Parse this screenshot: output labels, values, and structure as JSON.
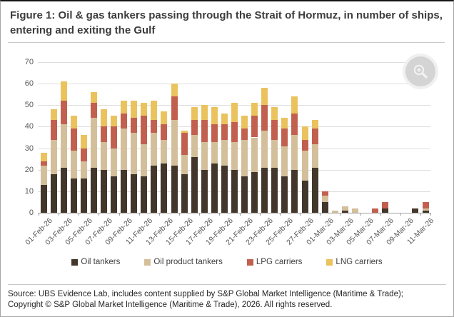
{
  "figure": {
    "title": "Figure 1: Oil & gas tankers passing through the Strait of Hormuz, in number of ships, entering and exiting the Gulf",
    "source": "Source: UBS Evidence Lab, includes content supplied by S&P Global Market Intelligence (Maritime & Trade); Copyright © S&P Global Market Intelligence (Maritime & Trade), 2026. All rights reserved."
  },
  "icons": {
    "toolbar": "zoom-in-magnifier"
  },
  "chart_data": {
    "type": "bar",
    "stacked": true,
    "title": "Oil & gas tankers passing through the Strait of Hormuz",
    "xlabel": "",
    "ylabel": "",
    "ylim": [
      0,
      70
    ],
    "y_ticks": [
      0,
      10,
      20,
      30,
      40,
      50,
      60,
      70
    ],
    "grid": true,
    "legend_position": "bottom",
    "x_tick_every": 2,
    "categories": [
      "01-Feb-26",
      "02-Feb-26",
      "03-Feb-26",
      "04-Feb-26",
      "05-Feb-26",
      "06-Feb-26",
      "07-Feb-26",
      "08-Feb-26",
      "09-Feb-26",
      "10-Feb-26",
      "11-Feb-26",
      "12-Feb-26",
      "13-Feb-26",
      "14-Feb-26",
      "15-Feb-26",
      "16-Feb-26",
      "17-Feb-26",
      "18-Feb-26",
      "19-Feb-26",
      "20-Feb-26",
      "21-Feb-26",
      "22-Feb-26",
      "23-Feb-26",
      "24-Feb-26",
      "25-Feb-26",
      "26-Feb-26",
      "27-Feb-26",
      "28-Feb-26",
      "01-Mar-26",
      "02-Mar-26",
      "03-Mar-26",
      "04-Mar-26",
      "05-Mar-26",
      "06-Mar-26",
      "07-Mar-26",
      "08-Mar-26",
      "09-Mar-26",
      "10-Mar-26",
      "11-Mar-26"
    ],
    "series": [
      {
        "name": "Oil tankers",
        "color": "#42372a",
        "values": [
          13,
          18,
          21,
          16,
          16,
          21,
          20,
          17,
          20,
          18,
          17,
          22,
          23,
          22,
          18,
          26,
          20,
          23,
          22,
          20,
          17,
          19,
          21,
          21,
          17,
          20,
          15,
          21,
          5,
          0,
          1,
          0,
          0,
          0,
          2,
          0,
          0,
          2,
          1
        ]
      },
      {
        "name": "Oil product tankers",
        "color": "#d4bf9b",
        "values": [
          9,
          16,
          20,
          13,
          8,
          23,
          13,
          13,
          19,
          19,
          15,
          15,
          11,
          21,
          9,
          10,
          13,
          10,
          12,
          13,
          17,
          16,
          17,
          13,
          14,
          16,
          14,
          11,
          3,
          1,
          2,
          2,
          0,
          0,
          0,
          0,
          0,
          0,
          1
        ]
      },
      {
        "name": "LPG carriers",
        "color": "#c2604f",
        "values": [
          2,
          9,
          11,
          10,
          6,
          7,
          7,
          10,
          7,
          7,
          13,
          6,
          7,
          11,
          10,
          7,
          10,
          8,
          7,
          9,
          5,
          10,
          12,
          9,
          8,
          10,
          5,
          7,
          2,
          0,
          0,
          0,
          0,
          2,
          3,
          0,
          0,
          0,
          3
        ]
      },
      {
        "name": "LNG carriers",
        "color": "#eac35e",
        "values": [
          4,
          5,
          9,
          6,
          6,
          5,
          8,
          5,
          6,
          8,
          6,
          9,
          6,
          6,
          1,
          6,
          7,
          8,
          5,
          9,
          6,
          6,
          8,
          6,
          5,
          8,
          6,
          4,
          0,
          0,
          0,
          0,
          0,
          0,
          0,
          0,
          0,
          0,
          0
        ]
      }
    ]
  }
}
